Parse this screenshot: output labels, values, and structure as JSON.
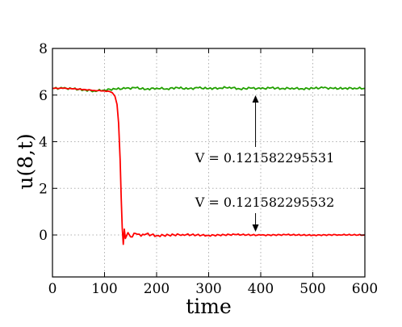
{
  "chart_data": {
    "type": "line",
    "xlabel": "time",
    "ylabel": "u(8,t)",
    "xlim": [
      0,
      600
    ],
    "ylim": [
      -1.8,
      8
    ],
    "xticks": [
      0,
      100,
      200,
      300,
      400,
      500,
      600
    ],
    "yticks": [
      0,
      2,
      4,
      6,
      8
    ],
    "grid": true,
    "series": [
      {
        "color": "#22a000",
        "x": [
          0,
          20,
          40,
          60,
          80,
          100,
          120,
          140,
          160,
          180,
          200,
          220,
          240,
          260,
          280,
          300,
          320,
          340,
          360,
          380,
          400,
          420,
          440,
          460,
          480,
          500,
          520,
          540,
          560,
          580,
          600
        ],
        "y": [
          6.29,
          6.29,
          6.27,
          6.22,
          6.18,
          6.22,
          6.26,
          6.28,
          6.31,
          6.25,
          6.3,
          6.27,
          6.32,
          6.26,
          6.31,
          6.28,
          6.3,
          6.34,
          6.26,
          6.3,
          6.27,
          6.31,
          6.28,
          6.3,
          6.27,
          6.29,
          6.31,
          6.28,
          6.29,
          6.3,
          6.29
        ]
      },
      {
        "color": "#ff0000",
        "x": [
          0,
          20,
          40,
          60,
          80,
          100,
          110,
          115,
          120,
          124,
          127,
          130,
          132,
          134,
          136,
          138,
          140,
          145,
          150,
          160,
          170,
          180,
          200,
          250,
          300,
          350,
          400,
          450,
          500,
          550,
          600
        ],
        "y": [
          6.29,
          6.29,
          6.27,
          6.24,
          6.2,
          6.18,
          6.15,
          6.1,
          5.95,
          5.6,
          4.8,
          3.2,
          1.6,
          0.3,
          -0.4,
          0.25,
          -0.15,
          0.1,
          -0.08,
          0.06,
          -0.05,
          0.04,
          -0.03,
          0.02,
          -0.02,
          0.02,
          -0.01,
          0.01,
          -0.01,
          0.01,
          0.0
        ]
      }
    ],
    "annotations": [
      {
        "text": "V = 0.121582295531",
        "arrow_to": [
          390,
          6.2
        ]
      },
      {
        "text": "V = 0.121582295532",
        "arrow_to": [
          390,
          0.0
        ]
      }
    ]
  }
}
